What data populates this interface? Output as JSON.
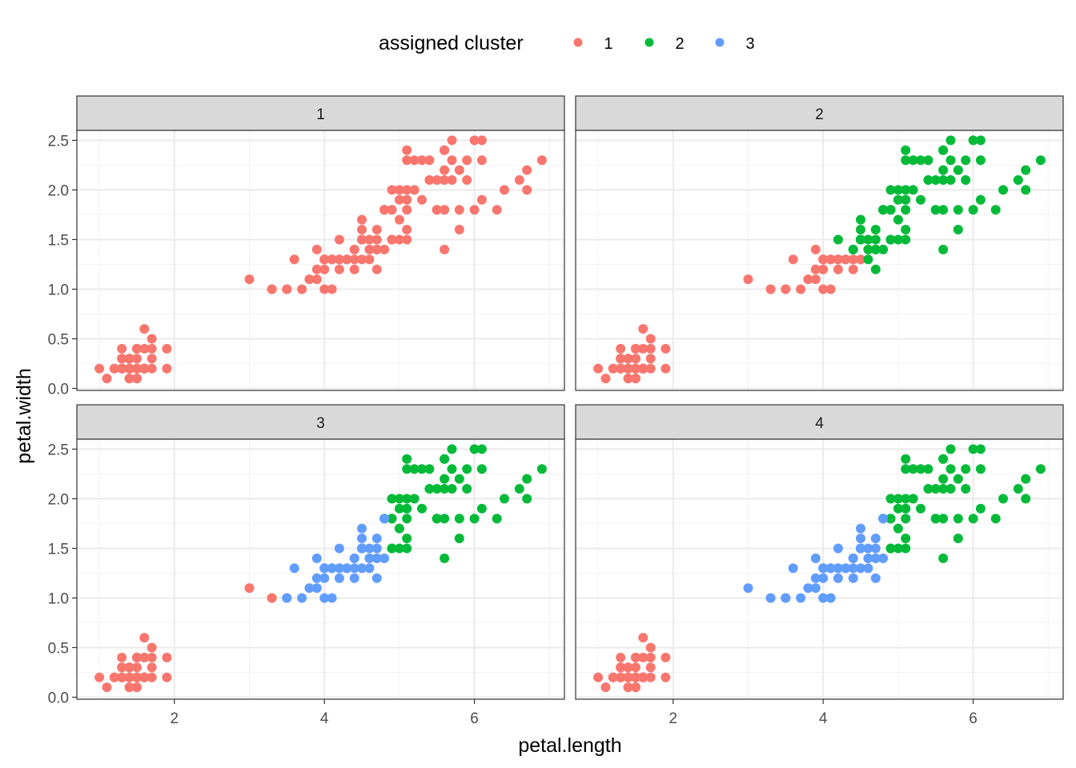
{
  "chart_data": {
    "type": "scatter",
    "xlabel": "petal.length",
    "ylabel": "petal.width",
    "xlim": [
      0.7,
      7.2
    ],
    "ylim": [
      -0.02,
      2.6
    ],
    "x_ticks": [
      2,
      4,
      6
    ],
    "y_ticks": [
      0.0,
      0.5,
      1.0,
      1.5,
      2.0,
      2.5
    ],
    "x_tick_labels": [
      "2",
      "4",
      "6"
    ],
    "y_tick_labels": [
      "0.0",
      "0.5",
      "1.0",
      "1.5",
      "2.0",
      "2.5"
    ],
    "grid": true,
    "legend": {
      "title": "assigned cluster",
      "placement": "top",
      "entries": [
        {
          "label": "1",
          "color": "#F8766D"
        },
        {
          "label": "2",
          "color": "#00BA38"
        },
        {
          "label": "3",
          "color": "#619CFF"
        }
      ]
    },
    "panels": [
      "1",
      "2",
      "3",
      "4"
    ],
    "points": [
      [
        1.4,
        0.2,
        1,
        1,
        1,
        1
      ],
      [
        1.4,
        0.2,
        1,
        1,
        1,
        1
      ],
      [
        1.3,
        0.2,
        1,
        1,
        1,
        1
      ],
      [
        1.5,
        0.2,
        1,
        1,
        1,
        1
      ],
      [
        1.4,
        0.2,
        1,
        1,
        1,
        1
      ],
      [
        1.7,
        0.4,
        1,
        1,
        1,
        1
      ],
      [
        1.4,
        0.3,
        1,
        1,
        1,
        1
      ],
      [
        1.5,
        0.2,
        1,
        1,
        1,
        1
      ],
      [
        1.4,
        0.2,
        1,
        1,
        1,
        1
      ],
      [
        1.5,
        0.1,
        1,
        1,
        1,
        1
      ],
      [
        1.5,
        0.2,
        1,
        1,
        1,
        1
      ],
      [
        1.6,
        0.2,
        1,
        1,
        1,
        1
      ],
      [
        1.4,
        0.1,
        1,
        1,
        1,
        1
      ],
      [
        1.1,
        0.1,
        1,
        1,
        1,
        1
      ],
      [
        1.2,
        0.2,
        1,
        1,
        1,
        1
      ],
      [
        1.5,
        0.4,
        1,
        1,
        1,
        1
      ],
      [
        1.3,
        0.4,
        1,
        1,
        1,
        1
      ],
      [
        1.4,
        0.3,
        1,
        1,
        1,
        1
      ],
      [
        1.7,
        0.3,
        1,
        1,
        1,
        1
      ],
      [
        1.5,
        0.3,
        1,
        1,
        1,
        1
      ],
      [
        1.7,
        0.2,
        1,
        1,
        1,
        1
      ],
      [
        1.5,
        0.4,
        1,
        1,
        1,
        1
      ],
      [
        1.0,
        0.2,
        1,
        1,
        1,
        1
      ],
      [
        1.7,
        0.5,
        1,
        1,
        1,
        1
      ],
      [
        1.9,
        0.2,
        1,
        1,
        1,
        1
      ],
      [
        1.6,
        0.2,
        1,
        1,
        1,
        1
      ],
      [
        1.6,
        0.4,
        1,
        1,
        1,
        1
      ],
      [
        1.5,
        0.2,
        1,
        1,
        1,
        1
      ],
      [
        1.4,
        0.2,
        1,
        1,
        1,
        1
      ],
      [
        1.6,
        0.2,
        1,
        1,
        1,
        1
      ],
      [
        1.6,
        0.2,
        1,
        1,
        1,
        1
      ],
      [
        1.5,
        0.4,
        1,
        1,
        1,
        1
      ],
      [
        1.5,
        0.1,
        1,
        1,
        1,
        1
      ],
      [
        1.4,
        0.2,
        1,
        1,
        1,
        1
      ],
      [
        1.5,
        0.2,
        1,
        1,
        1,
        1
      ],
      [
        1.2,
        0.2,
        1,
        1,
        1,
        1
      ],
      [
        1.3,
        0.2,
        1,
        1,
        1,
        1
      ],
      [
        1.4,
        0.1,
        1,
        1,
        1,
        1
      ],
      [
        1.3,
        0.2,
        1,
        1,
        1,
        1
      ],
      [
        1.5,
        0.2,
        1,
        1,
        1,
        1
      ],
      [
        1.3,
        0.3,
        1,
        1,
        1,
        1
      ],
      [
        1.3,
        0.3,
        1,
        1,
        1,
        1
      ],
      [
        1.3,
        0.2,
        1,
        1,
        1,
        1
      ],
      [
        1.6,
        0.6,
        1,
        1,
        1,
        1
      ],
      [
        1.9,
        0.4,
        1,
        1,
        1,
        1
      ],
      [
        1.4,
        0.3,
        1,
        1,
        1,
        1
      ],
      [
        1.6,
        0.2,
        1,
        1,
        1,
        1
      ],
      [
        1.4,
        0.2,
        1,
        1,
        1,
        1
      ],
      [
        1.5,
        0.2,
        1,
        1,
        1,
        1
      ],
      [
        1.4,
        0.2,
        1,
        1,
        1,
        1
      ],
      [
        4.7,
        1.4,
        1,
        2,
        3,
        3
      ],
      [
        4.5,
        1.5,
        1,
        2,
        3,
        3
      ],
      [
        4.9,
        1.5,
        1,
        2,
        2,
        2
      ],
      [
        4.0,
        1.3,
        1,
        1,
        3,
        3
      ],
      [
        4.6,
        1.5,
        1,
        2,
        3,
        3
      ],
      [
        4.5,
        1.3,
        1,
        1,
        3,
        3
      ],
      [
        4.7,
        1.6,
        1,
        2,
        3,
        3
      ],
      [
        3.3,
        1.0,
        1,
        1,
        1,
        3
      ],
      [
        4.6,
        1.3,
        1,
        2,
        3,
        3
      ],
      [
        3.9,
        1.4,
        1,
        1,
        3,
        3
      ],
      [
        3.5,
        1.0,
        1,
        1,
        3,
        3
      ],
      [
        4.2,
        1.5,
        1,
        2,
        3,
        3
      ],
      [
        4.0,
        1.0,
        1,
        1,
        3,
        3
      ],
      [
        4.7,
        1.4,
        1,
        2,
        3,
        3
      ],
      [
        3.6,
        1.3,
        1,
        1,
        3,
        3
      ],
      [
        4.4,
        1.4,
        1,
        2,
        3,
        3
      ],
      [
        4.5,
        1.5,
        1,
        2,
        3,
        3
      ],
      [
        4.1,
        1.0,
        1,
        1,
        3,
        3
      ],
      [
        4.5,
        1.5,
        1,
        2,
        3,
        3
      ],
      [
        3.9,
        1.1,
        1,
        1,
        3,
        3
      ],
      [
        4.8,
        1.8,
        1,
        2,
        3,
        3
      ],
      [
        4.0,
        1.3,
        1,
        1,
        3,
        3
      ],
      [
        4.9,
        1.5,
        1,
        2,
        2,
        2
      ],
      [
        4.7,
        1.2,
        1,
        2,
        3,
        3
      ],
      [
        4.3,
        1.3,
        1,
        1,
        3,
        3
      ],
      [
        4.4,
        1.4,
        1,
        2,
        3,
        3
      ],
      [
        4.8,
        1.4,
        1,
        2,
        3,
        3
      ],
      [
        5.0,
        1.7,
        1,
        2,
        2,
        2
      ],
      [
        4.5,
        1.5,
        1,
        2,
        3,
        3
      ],
      [
        3.5,
        1.0,
        1,
        1,
        3,
        3
      ],
      [
        3.8,
        1.1,
        1,
        1,
        3,
        3
      ],
      [
        3.7,
        1.0,
        1,
        1,
        3,
        3
      ],
      [
        3.9,
        1.2,
        1,
        1,
        3,
        3
      ],
      [
        5.1,
        1.6,
        1,
        2,
        2,
        2
      ],
      [
        4.5,
        1.5,
        1,
        2,
        3,
        3
      ],
      [
        4.5,
        1.6,
        1,
        2,
        3,
        3
      ],
      [
        4.7,
        1.5,
        1,
        2,
        3,
        3
      ],
      [
        4.4,
        1.3,
        1,
        1,
        3,
        3
      ],
      [
        4.1,
        1.3,
        1,
        1,
        3,
        3
      ],
      [
        4.0,
        1.3,
        1,
        1,
        3,
        3
      ],
      [
        4.4,
        1.2,
        1,
        1,
        3,
        3
      ],
      [
        4.6,
        1.4,
        1,
        2,
        3,
        3
      ],
      [
        4.0,
        1.2,
        1,
        1,
        3,
        3
      ],
      [
        3.3,
        1.0,
        1,
        1,
        1,
        3
      ],
      [
        4.2,
        1.3,
        1,
        1,
        3,
        3
      ],
      [
        4.2,
        1.2,
        1,
        1,
        3,
        3
      ],
      [
        4.2,
        1.3,
        1,
        1,
        3,
        3
      ],
      [
        4.3,
        1.3,
        1,
        1,
        3,
        3
      ],
      [
        3.0,
        1.1,
        1,
        1,
        1,
        3
      ],
      [
        4.1,
        1.3,
        1,
        1,
        3,
        3
      ],
      [
        6.0,
        2.5,
        1,
        2,
        2,
        2
      ],
      [
        5.1,
        1.9,
        1,
        2,
        2,
        2
      ],
      [
        5.9,
        2.1,
        1,
        2,
        2,
        2
      ],
      [
        5.6,
        1.8,
        1,
        2,
        2,
        2
      ],
      [
        5.8,
        2.2,
        1,
        2,
        2,
        2
      ],
      [
        6.6,
        2.1,
        1,
        2,
        2,
        2
      ],
      [
        4.5,
        1.7,
        1,
        2,
        3,
        3
      ],
      [
        6.3,
        1.8,
        1,
        2,
        2,
        2
      ],
      [
        5.8,
        1.8,
        1,
        2,
        2,
        2
      ],
      [
        6.1,
        2.5,
        1,
        2,
        2,
        2
      ],
      [
        5.1,
        2.0,
        1,
        2,
        2,
        2
      ],
      [
        5.3,
        1.9,
        1,
        2,
        2,
        2
      ],
      [
        5.5,
        2.1,
        1,
        2,
        2,
        2
      ],
      [
        5.0,
        2.0,
        1,
        2,
        2,
        2
      ],
      [
        5.1,
        2.4,
        1,
        2,
        2,
        2
      ],
      [
        5.3,
        2.3,
        1,
        2,
        2,
        2
      ],
      [
        5.5,
        1.8,
        1,
        2,
        2,
        2
      ],
      [
        6.7,
        2.2,
        1,
        2,
        2,
        2
      ],
      [
        6.9,
        2.3,
        1,
        2,
        2,
        2
      ],
      [
        5.0,
        1.5,
        1,
        2,
        2,
        2
      ],
      [
        5.7,
        2.3,
        1,
        2,
        2,
        2
      ],
      [
        4.9,
        2.0,
        1,
        2,
        2,
        2
      ],
      [
        6.7,
        2.0,
        1,
        2,
        2,
        2
      ],
      [
        4.9,
        1.8,
        1,
        2,
        3,
        3
      ],
      [
        5.7,
        2.1,
        1,
        2,
        2,
        2
      ],
      [
        6.0,
        1.8,
        1,
        2,
        2,
        2
      ],
      [
        4.8,
        1.8,
        1,
        2,
        3,
        3
      ],
      [
        4.9,
        1.8,
        1,
        2,
        2,
        2
      ],
      [
        5.6,
        2.1,
        1,
        2,
        2,
        2
      ],
      [
        5.8,
        1.6,
        1,
        2,
        2,
        2
      ],
      [
        6.1,
        1.9,
        1,
        2,
        2,
        2
      ],
      [
        6.4,
        2.0,
        1,
        2,
        2,
        2
      ],
      [
        5.6,
        2.2,
        1,
        2,
        2,
        2
      ],
      [
        5.1,
        1.5,
        1,
        2,
        2,
        2
      ],
      [
        5.6,
        1.4,
        1,
        2,
        2,
        2
      ],
      [
        6.1,
        2.3,
        1,
        2,
        2,
        2
      ],
      [
        5.6,
        2.4,
        1,
        2,
        2,
        2
      ],
      [
        5.5,
        1.8,
        1,
        2,
        2,
        2
      ],
      [
        4.8,
        1.8,
        1,
        2,
        3,
        3
      ],
      [
        5.4,
        2.1,
        1,
        2,
        2,
        2
      ],
      [
        5.6,
        2.4,
        1,
        2,
        2,
        2
      ],
      [
        5.1,
        2.3,
        1,
        2,
        2,
        2
      ],
      [
        5.1,
        1.9,
        1,
        2,
        2,
        2
      ],
      [
        5.9,
        2.3,
        1,
        2,
        2,
        2
      ],
      [
        5.7,
        2.5,
        1,
        2,
        2,
        2
      ],
      [
        5.2,
        2.3,
        1,
        2,
        2,
        2
      ],
      [
        5.0,
        1.9,
        1,
        2,
        2,
        2
      ],
      [
        5.2,
        2.0,
        1,
        2,
        2,
        2
      ],
      [
        5.4,
        2.3,
        1,
        2,
        2,
        2
      ],
      [
        5.1,
        1.8,
        1,
        2,
        2,
        2
      ]
    ]
  }
}
